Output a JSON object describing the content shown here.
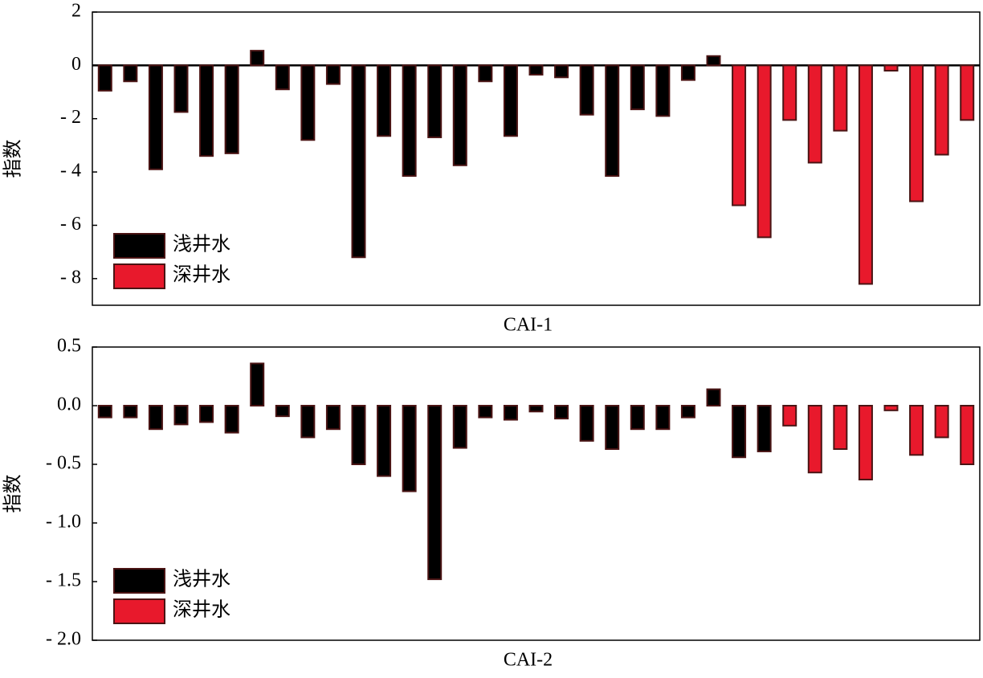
{
  "chart_data": [
    {
      "type": "bar",
      "xlabel": "CAI-1",
      "ylabel": "指数",
      "categories": [
        null,
        null,
        null,
        null,
        null,
        null,
        null,
        null,
        null,
        null,
        null,
        null,
        null,
        null,
        null,
        null,
        null,
        null,
        null,
        null,
        null,
        null,
        null,
        null,
        null,
        null,
        null,
        null,
        null,
        null,
        null,
        null,
        null,
        null,
        null
      ],
      "series": [
        {
          "name": "浅井水",
          "color": "#000000",
          "values": [
            -0.95,
            -0.6,
            -3.9,
            -1.75,
            -3.4,
            -3.3,
            0.55,
            -0.9,
            -2.8,
            -0.7,
            -7.2,
            -2.65,
            -4.15,
            -2.7,
            -3.75,
            -0.6,
            -2.65,
            -0.35,
            -0.45,
            -1.85,
            -4.15,
            -1.65,
            -1.9,
            -0.55,
            0.35,
            null,
            null,
            null,
            null,
            null,
            null,
            null,
            null,
            null,
            null
          ]
        },
        {
          "name": "深井水",
          "color": "#e8192c",
          "values": [
            null,
            null,
            null,
            null,
            null,
            null,
            null,
            null,
            null,
            null,
            null,
            null,
            null,
            null,
            null,
            null,
            null,
            null,
            null,
            null,
            null,
            null,
            null,
            null,
            null,
            -5.25,
            -6.45,
            -2.05,
            -3.65,
            -2.45,
            -8.2,
            -0.2,
            -5.1,
            -3.35,
            -2.05
          ]
        }
      ],
      "ylim": [
        -9,
        2
      ],
      "yticks": [
        2,
        0,
        {
          "value": -2,
          "label": "- 2"
        },
        {
          "value": -4,
          "label": "- 4"
        },
        {
          "value": -6,
          "label": "- 6"
        },
        {
          "value": -8,
          "label": "- 8"
        }
      ],
      "zero_line": true,
      "legend": "lower-left"
    },
    {
      "type": "bar",
      "xlabel": "CAI-2",
      "ylabel": "指数",
      "categories": [
        null,
        null,
        null,
        null,
        null,
        null,
        null,
        null,
        null,
        null,
        null,
        null,
        null,
        null,
        null,
        null,
        null,
        null,
        null,
        null,
        null,
        null,
        null,
        null,
        null,
        null,
        null,
        null,
        null,
        null,
        null,
        null,
        null,
        null,
        null
      ],
      "series": [
        {
          "name": "浅井水",
          "color": "#000000",
          "values": [
            -0.1,
            -0.1,
            -0.2,
            -0.16,
            -0.14,
            -0.23,
            0.36,
            -0.09,
            -0.27,
            -0.2,
            -0.5,
            -0.6,
            -0.73,
            -1.48,
            -0.36,
            -0.1,
            -0.12,
            -0.05,
            -0.11,
            -0.3,
            -0.37,
            -0.2,
            -0.2,
            -0.1,
            0.14,
            -0.44,
            -0.39,
            null,
            null,
            null,
            null,
            null,
            null,
            null,
            null
          ]
        },
        {
          "name": "深井水",
          "color": "#e8192c",
          "values": [
            null,
            null,
            null,
            null,
            null,
            null,
            null,
            null,
            null,
            null,
            null,
            null,
            null,
            null,
            null,
            null,
            null,
            null,
            null,
            null,
            null,
            null,
            null,
            null,
            null,
            null,
            null,
            -0.17,
            -0.57,
            -0.37,
            -0.63,
            -0.04,
            -0.42,
            -0.27,
            -0.5
          ]
        }
      ],
      "ylim": [
        -2,
        0.5
      ],
      "yticks": [
        0.5,
        {
          "value": 0,
          "label": "0.0"
        },
        {
          "value": -0.5,
          "label": "- 0.5"
        },
        {
          "value": -1,
          "label": "- 1.0"
        },
        {
          "value": -1.5,
          "label": "- 1.5"
        },
        {
          "value": -2,
          "label": "- 2.0"
        }
      ],
      "zero_line": false,
      "legend": "lower-left"
    }
  ]
}
